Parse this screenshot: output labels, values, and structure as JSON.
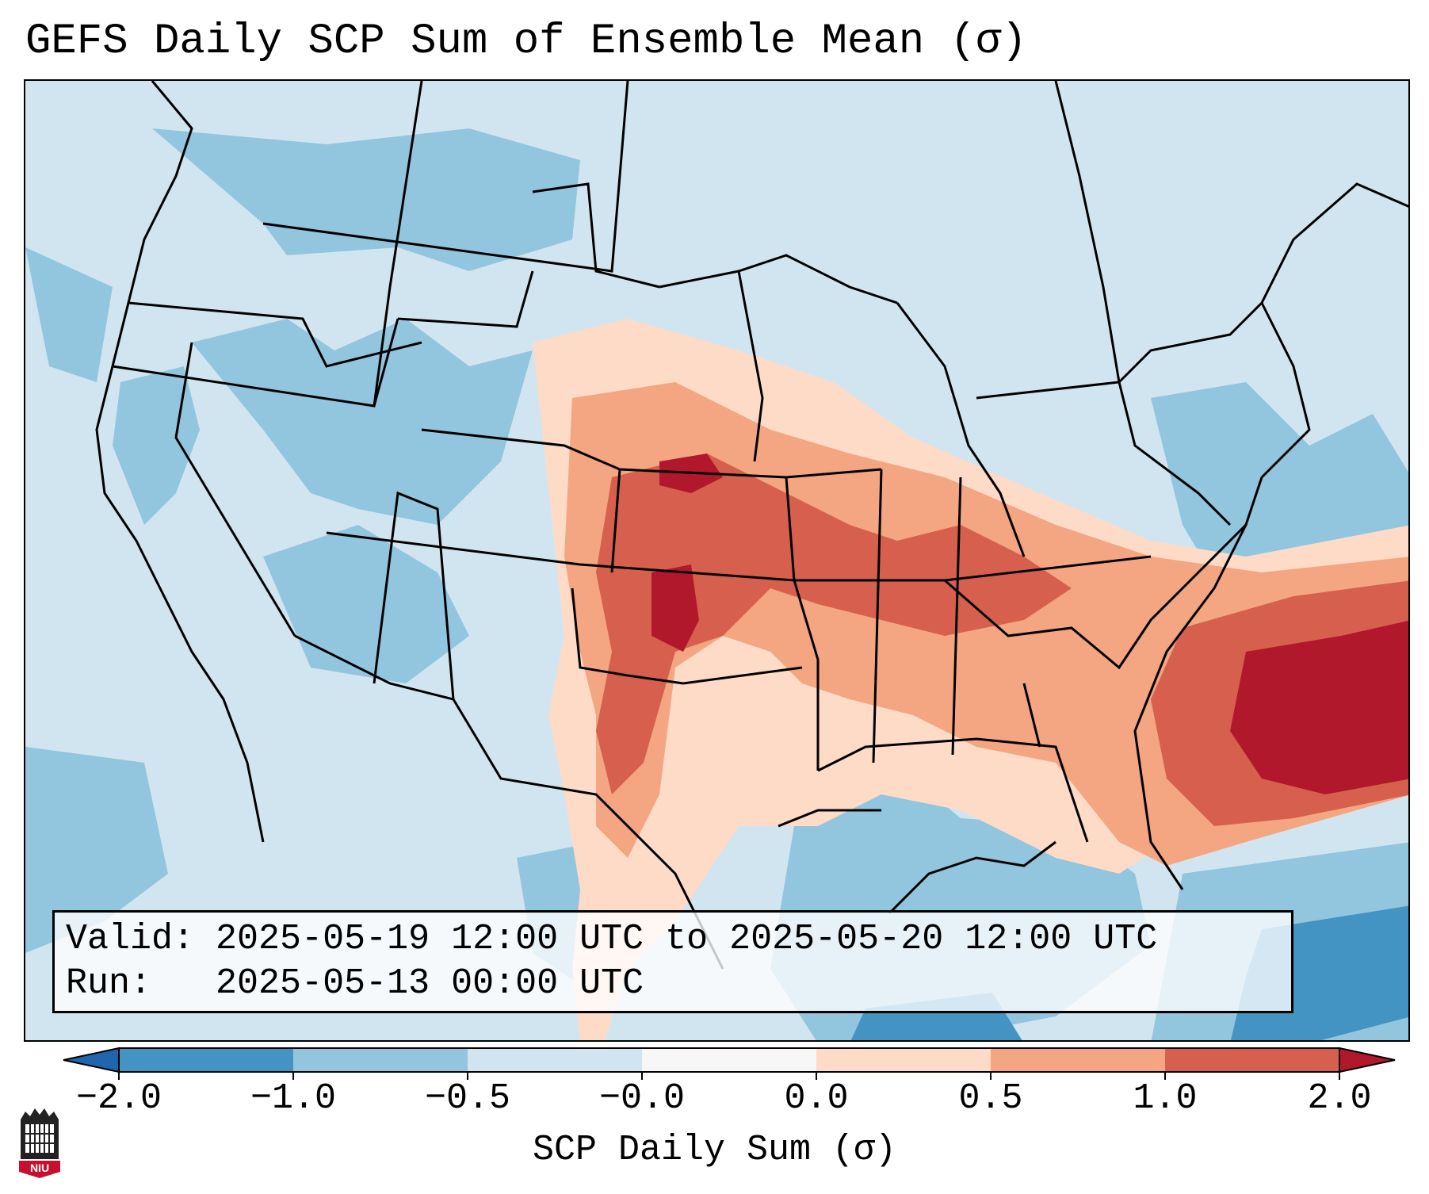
{
  "title": "GEFS Daily SCP Sum of Ensemble Mean (σ)",
  "info": {
    "valid_label": "Valid:",
    "valid_value": "2025-05-19 12:00 UTC to 2025-05-20 12:00 UTC",
    "run_label": "Run:",
    "run_value": "2025-05-13 00:00 UTC"
  },
  "colorbar": {
    "label": "SCP Daily Sum (σ)",
    "ticks": [
      "−2.0",
      "−1.0",
      "−0.5",
      "−0.0",
      "0.0",
      "0.5",
      "1.0",
      "2.0"
    ],
    "colors": [
      "#4393c3",
      "#92c5de",
      "#d1e5f0",
      "#f7f7f7",
      "#fddbc7",
      "#f4a582",
      "#d6604d",
      "#b2182b"
    ],
    "extend_low_color": "#2166ac",
    "extend_high_color": "#b2182b"
  },
  "logo": {
    "text": "NIU",
    "color": "#c8102e"
  },
  "map": {
    "projection": "Lambert conformal, CONUS",
    "field": "SCP daily sum anomaly (σ)",
    "colors": {
      "background": "#d1e5f0",
      "light_blue": "#92c5de",
      "mid_blue": "#4393c3",
      "light_red": "#fddbc7",
      "mid_red": "#f4a582",
      "red": "#d6604d",
      "dark_red": "#b2182b"
    }
  }
}
